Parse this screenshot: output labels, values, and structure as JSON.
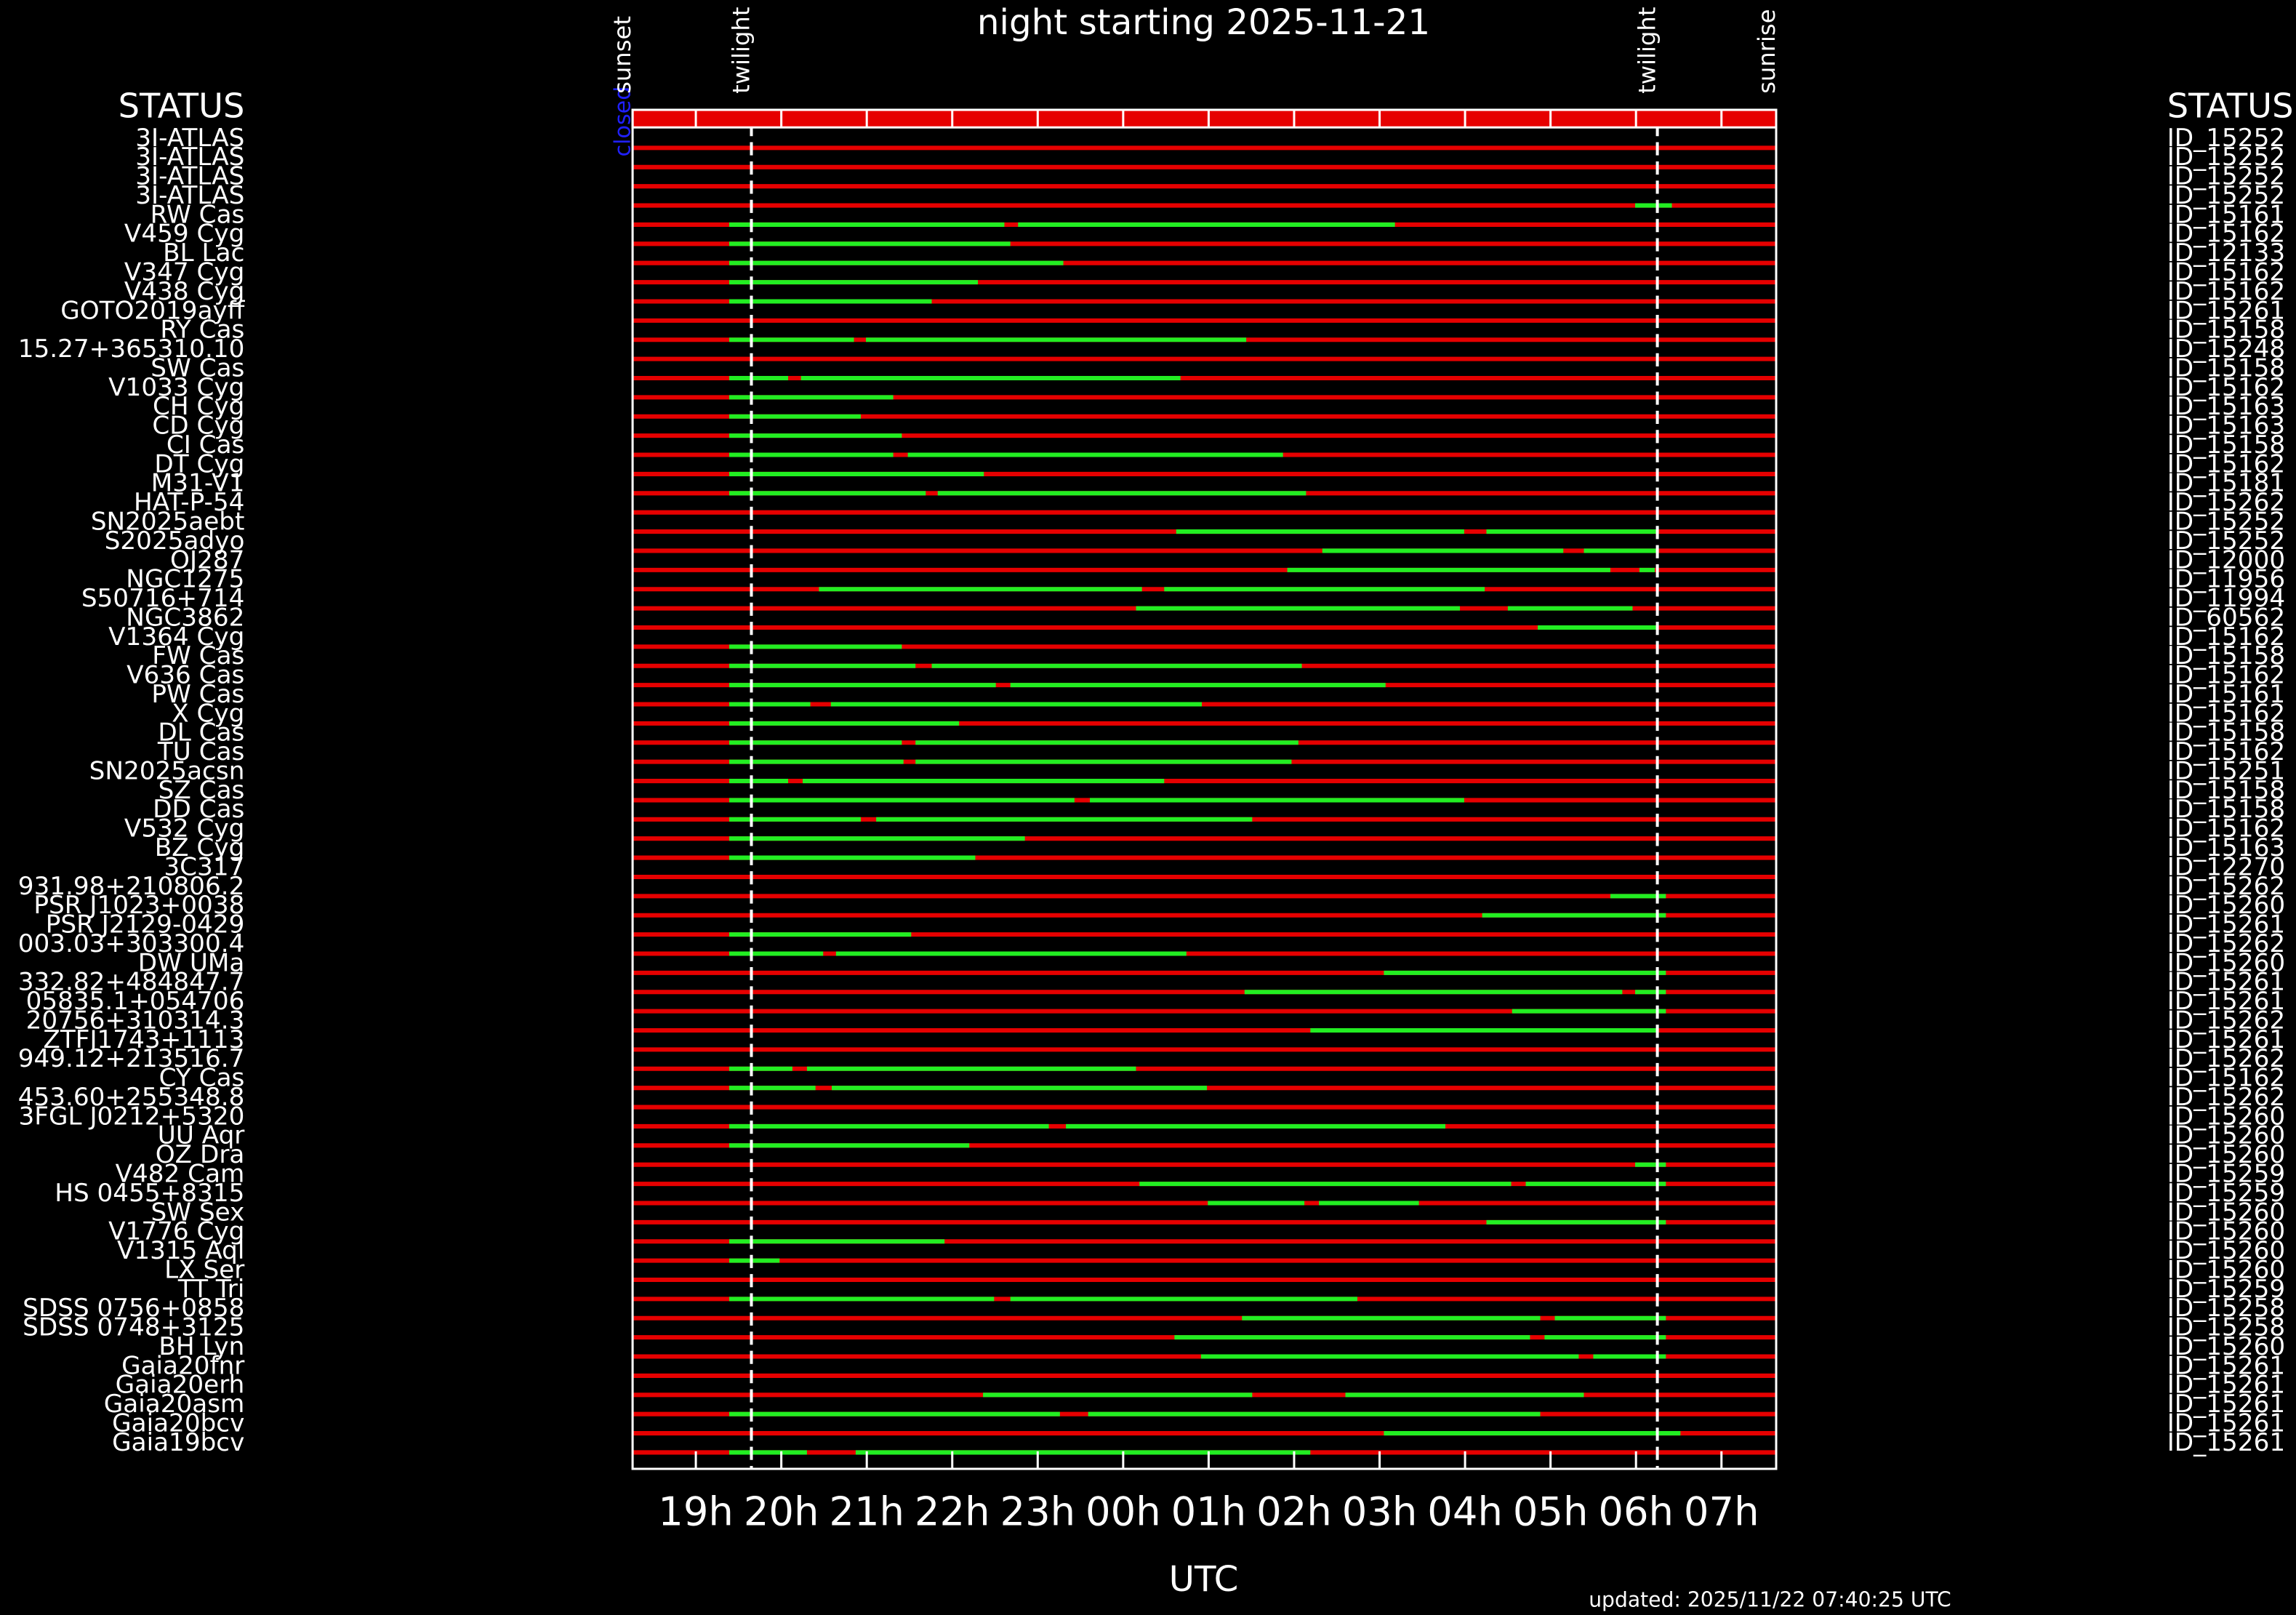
{
  "chart_data": {
    "type": "timeline",
    "title": "night starting 2025-11-21",
    "xlabel": "UTC",
    "footer": "updated: 2025/11/22 07:40:25 UTC",
    "left_header": "STATUS",
    "right_header": "STATUS",
    "status": "closed",
    "xlim": [
      18.26,
      31.64
    ],
    "xticks": [
      {
        "value": 19,
        "label": "19h"
      },
      {
        "value": 20,
        "label": "20h"
      },
      {
        "value": 21,
        "label": "21h"
      },
      {
        "value": 22,
        "label": "22h"
      },
      {
        "value": 23,
        "label": "23h"
      },
      {
        "value": 24,
        "label": "00h"
      },
      {
        "value": 25,
        "label": "01h"
      },
      {
        "value": 26,
        "label": "02h"
      },
      {
        "value": 27,
        "label": "03h"
      },
      {
        "value": 28,
        "label": "04h"
      },
      {
        "value": 29,
        "label": "05h"
      },
      {
        "value": 30,
        "label": "06h"
      },
      {
        "value": 31,
        "label": "07h"
      }
    ],
    "events": [
      {
        "label": "sunset",
        "x": 18.26
      },
      {
        "label": "twilight",
        "x": 19.65
      },
      {
        "label": "twilight",
        "x": 30.25
      },
      {
        "label": "sunrise",
        "x": 31.65
      }
    ],
    "row_color": "#e60000",
    "window_color": "#22ee22",
    "targets": [
      "3I-ATLAS",
      "3I-ATLAS",
      "3I-ATLAS",
      "3I-ATLAS",
      "RW Cas",
      "V459 Cyg",
      "BL Lac",
      "V347 Cyg",
      "V438 Cyg",
      "GOTO2019ayff",
      "RY Cas",
      "15.27+365310.10",
      "SW Cas",
      "V1033 Cyg",
      "CH Cyg",
      "CD Cyg",
      "CI Cas",
      "DT Cyg",
      "M31-V1",
      "HAT-P-54",
      "SN2025aebt",
      "S2025adyo",
      "OJ287",
      "NGC1275",
      "S50716+714",
      "NGC3862",
      "V1364 Cyg",
      "FW Cas",
      "V636 Cas",
      "PW Cas",
      "X Cyg",
      "DL Cas",
      "TU Cas",
      "SN2025acsn",
      "SZ Cas",
      "DD Cas",
      "V532 Cyg",
      "BZ Cyg",
      "3C317",
      "931.98+210806.2",
      "PSR J1023+0038",
      "PSR J2129-0429",
      "003.03+303300.4",
      "DW UMa",
      "332.82+484847.7",
      "05835.1+054706",
      "20756+310314.3",
      "ZTFJ1743+1113",
      "949.12+213516.7",
      "CY Cas",
      "453.60+255348.8",
      "3FGL J0212+5320",
      "UU Aqr",
      "OZ Dra",
      "V482 Cam",
      "HS 0455+8315",
      "SW Sex",
      "V1776 Cyg",
      "V1315 Aql",
      "LX Ser",
      "TT Tri",
      "SDSS 0756+0858",
      "SDSS 0748+3125",
      "BH Lyn",
      "Gaia20fnr",
      "Gaia20erh",
      "Gaia20asm",
      "Gaia20bcv",
      "Gaia19bcv"
    ],
    "ids": [
      "ID_15252",
      "ID_15252",
      "ID_15252",
      "ID_15252",
      "ID_15161",
      "ID_15162",
      "ID_12133",
      "ID_15162",
      "ID_15162",
      "ID_15261",
      "ID_15158",
      "ID_15248",
      "ID_15158",
      "ID_15162",
      "ID_15163",
      "ID_15163",
      "ID_15158",
      "ID_15162",
      "ID_15181",
      "ID_15262",
      "ID_15252",
      "ID_15252",
      "ID_12000",
      "ID_11956",
      "ID_11994",
      "ID_60562",
      "ID_15162",
      "ID_15158",
      "ID_15162",
      "ID_15161",
      "ID_15162",
      "ID_15158",
      "ID_15162",
      "ID_15251",
      "ID_15158",
      "ID_15158",
      "ID_15162",
      "ID_15163",
      "ID_12270",
      "ID_15262",
      "ID_15260",
      "ID_15261",
      "ID_15262",
      "ID_15260",
      "ID_15261",
      "ID_15261",
      "ID_15262",
      "ID_15261",
      "ID_15262",
      "ID_15162",
      "ID_15262",
      "ID_15260",
      "ID_15260",
      "ID_15260",
      "ID_15259",
      "ID_15259",
      "ID_15260",
      "ID_15260",
      "ID_15260",
      "ID_15260",
      "ID_15259",
      "ID_15258",
      "ID_15258",
      "ID_15260",
      "ID_15261",
      "ID_15261",
      "ID_15261",
      "ID_15261",
      "ID_15261"
    ],
    "windows": [
      [],
      [],
      [],
      [
        [
          29.99,
          30.42
        ]
      ],
      [
        [
          19.39,
          22.61
        ],
        [
          22.77,
          27.18
        ]
      ],
      [
        [
          19.39,
          22.68
        ]
      ],
      [
        [
          19.39,
          23.3
        ]
      ],
      [
        [
          19.39,
          22.3
        ]
      ],
      [
        [
          19.39,
          21.76
        ]
      ],
      [],
      [
        [
          19.39,
          20.85
        ],
        [
          20.99,
          25.44
        ]
      ],
      [],
      [
        [
          19.39,
          20.08
        ],
        [
          20.23,
          24.67
        ]
      ],
      [
        [
          19.39,
          21.31
        ]
      ],
      [
        [
          19.39,
          20.93
        ]
      ],
      [
        [
          19.39,
          21.41
        ]
      ],
      [
        [
          19.39,
          21.31
        ],
        [
          21.48,
          25.87
        ]
      ],
      [
        [
          19.39,
          22.37
        ]
      ],
      [
        [
          19.39,
          21.69
        ],
        [
          21.83,
          26.14
        ]
      ],
      [],
      [
        [
          24.62,
          27.99
        ],
        [
          28.25,
          30.25
        ]
      ],
      [
        [
          26.33,
          29.15
        ],
        [
          29.39,
          30.25
        ]
      ],
      [
        [
          25.92,
          29.7
        ],
        [
          30.04,
          30.22
        ]
      ],
      [
        [
          20.44,
          24.22
        ],
        [
          24.48,
          28.23
        ]
      ],
      [
        [
          24.15,
          27.94
        ],
        [
          28.5,
          29.96
        ]
      ],
      [
        [
          28.85,
          30.25
        ]
      ],
      [
        [
          19.39,
          21.41
        ]
      ],
      [
        [
          19.39,
          21.57
        ],
        [
          21.76,
          26.09
        ]
      ],
      [
        [
          19.39,
          22.51
        ],
        [
          22.68,
          27.07
        ]
      ],
      [
        [
          19.39,
          20.34
        ],
        [
          20.58,
          24.92
        ]
      ],
      [
        [
          19.39,
          22.08
        ]
      ],
      [
        [
          19.39,
          21.41
        ],
        [
          21.57,
          26.05
        ]
      ],
      [
        [
          19.39,
          21.43
        ],
        [
          21.57,
          25.97
        ]
      ],
      [
        [
          19.39,
          20.08
        ],
        [
          20.25,
          24.48
        ]
      ],
      [
        [
          19.39,
          23.43
        ],
        [
          23.61,
          27.99
        ]
      ],
      [
        [
          19.39,
          20.93
        ],
        [
          21.11,
          25.51
        ]
      ],
      [
        [
          19.39,
          22.85
        ]
      ],
      [
        [
          19.39,
          22.27
        ]
      ],
      [],
      [
        [
          29.7,
          30.35
        ]
      ],
      [
        [
          28.2,
          30.35
        ]
      ],
      [
        [
          19.39,
          21.52
        ]
      ],
      [
        [
          19.39,
          20.49
        ],
        [
          20.64,
          24.74
        ]
      ],
      [
        [
          27.05,
          30.35
        ]
      ],
      [
        [
          25.42,
          29.84
        ],
        [
          29.99,
          30.35
        ]
      ],
      [
        [
          28.55,
          30.35
        ]
      ],
      [
        [
          26.19,
          30.25
        ]
      ],
      [],
      [
        [
          19.39,
          20.13
        ],
        [
          20.3,
          24.15
        ]
      ],
      [
        [
          19.39,
          20.4
        ],
        [
          20.59,
          24.98
        ]
      ],
      [],
      [
        [
          19.39,
          23.13
        ],
        [
          23.33,
          27.77
        ]
      ],
      [
        [
          19.39,
          22.2
        ]
      ],
      [
        [
          29.99,
          30.35
        ]
      ],
      [
        [
          24.19,
          28.54
        ],
        [
          28.71,
          30.35
        ]
      ],
      [
        [
          24.99,
          26.12
        ],
        [
          26.29,
          27.46
        ]
      ],
      [
        [
          28.25,
          30.35
        ]
      ],
      [
        [
          19.39,
          21.91
        ]
      ],
      [
        [
          19.39,
          19.98
        ]
      ],
      [],
      [
        [
          19.39,
          22.49
        ],
        [
          22.68,
          26.74
        ]
      ],
      [
        [
          25.39,
          28.88
        ],
        [
          29.05,
          30.35
        ]
      ],
      [
        [
          24.6,
          28.76
        ],
        [
          28.93,
          30.35
        ]
      ],
      [
        [
          24.91,
          29.33
        ],
        [
          29.5,
          30.35
        ]
      ],
      [],
      [
        [
          22.36,
          25.51
        ],
        [
          26.6,
          29.39
        ]
      ],
      [
        [
          19.39,
          23.26
        ],
        [
          23.59,
          28.88
        ]
      ],
      [
        [
          27.05,
          30.52
        ]
      ],
      [
        [
          19.39,
          20.3
        ],
        [
          20.87,
          26.19
        ]
      ]
    ]
  }
}
